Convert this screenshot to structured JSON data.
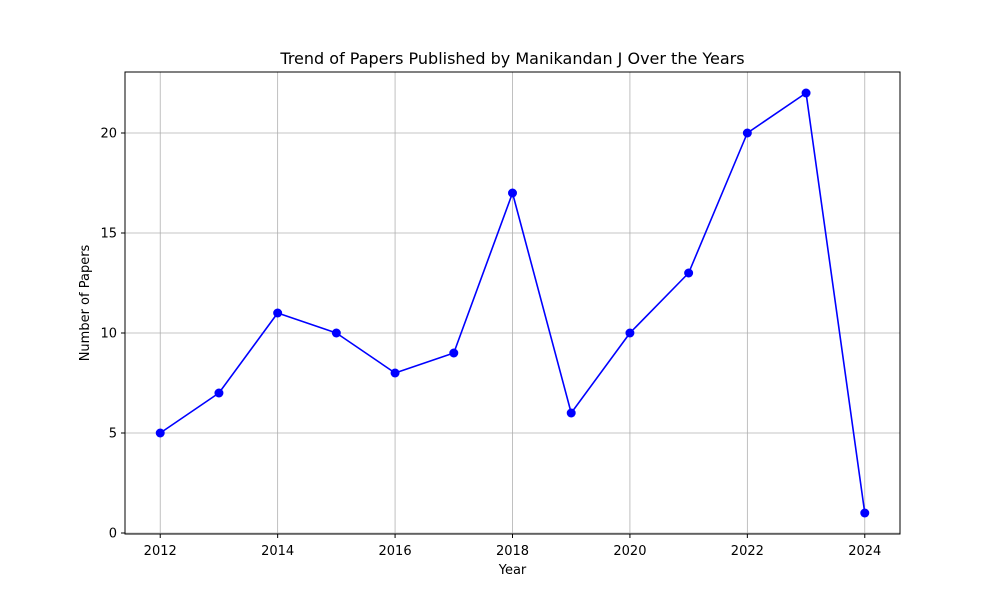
{
  "chart_data": {
    "type": "line",
    "title": "Trend of Papers Published by Manikandan J Over the Years",
    "xlabel": "Year",
    "ylabel": "Number of Papers",
    "x": [
      2012,
      2013,
      2014,
      2015,
      2016,
      2017,
      2018,
      2019,
      2020,
      2021,
      2022,
      2023,
      2024
    ],
    "series": [
      {
        "values": [
          5,
          7,
          11,
          10,
          8,
          9,
          17,
          6,
          10,
          13,
          20,
          22,
          1
        ],
        "color": "#0000ff",
        "marker": "circle"
      }
    ],
    "xticks": [
      2012,
      2014,
      2016,
      2018,
      2020,
      2022,
      2024
    ],
    "yticks": [
      0,
      5,
      10,
      15,
      20
    ],
    "xlim": [
      2011.4,
      2024.6
    ],
    "ylim": [
      -0.05,
      23.05
    ],
    "grid": true,
    "grid_color": "#b0b0b0",
    "axis_color": "#000000"
  }
}
